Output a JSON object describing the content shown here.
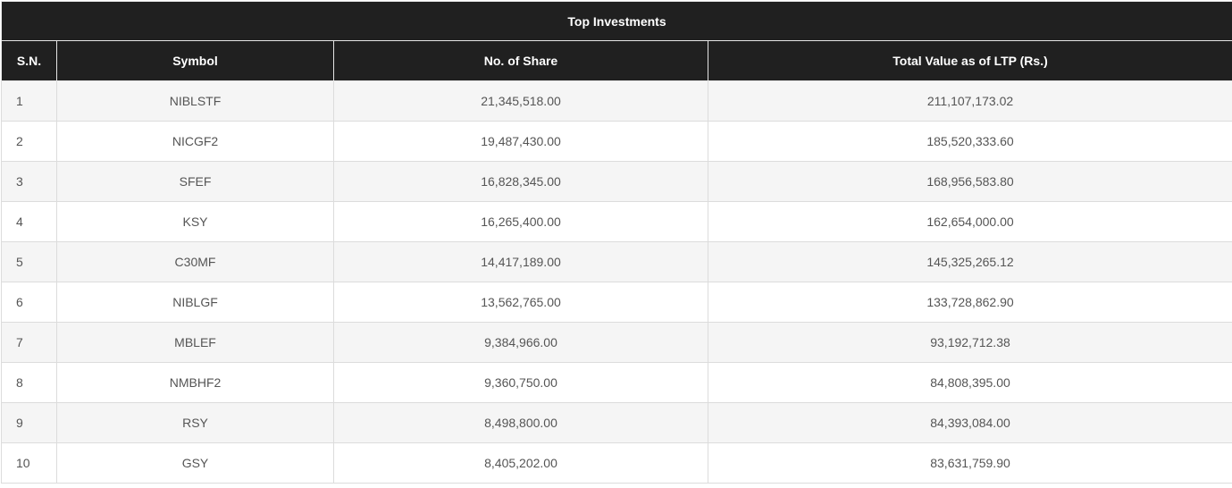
{
  "table": {
    "title": "Top Investments",
    "headers": {
      "sn": "S.N.",
      "symbol": "Symbol",
      "shares": "No. of Share",
      "value": "Total Value as of LTP (Rs.)"
    },
    "rows": [
      {
        "sn": "1",
        "symbol": "NIBLSTF",
        "shares": "21,345,518.00",
        "value": "211,107,173.02"
      },
      {
        "sn": "2",
        "symbol": "NICGF2",
        "shares": "19,487,430.00",
        "value": "185,520,333.60"
      },
      {
        "sn": "3",
        "symbol": "SFEF",
        "shares": "16,828,345.00",
        "value": "168,956,583.80"
      },
      {
        "sn": "4",
        "symbol": "KSY",
        "shares": "16,265,400.00",
        "value": "162,654,000.00"
      },
      {
        "sn": "5",
        "symbol": "C30MF",
        "shares": "14,417,189.00",
        "value": "145,325,265.12"
      },
      {
        "sn": "6",
        "symbol": "NIBLGF",
        "shares": "13,562,765.00",
        "value": "133,728,862.90"
      },
      {
        "sn": "7",
        "symbol": "MBLEF",
        "shares": "9,384,966.00",
        "value": "93,192,712.38"
      },
      {
        "sn": "8",
        "symbol": "NMBHF2",
        "shares": "9,360,750.00",
        "value": "84,808,395.00"
      },
      {
        "sn": "9",
        "symbol": "RSY",
        "shares": "8,498,800.00",
        "value": "84,393,084.00"
      },
      {
        "sn": "10",
        "symbol": "GSY",
        "shares": "8,405,202.00",
        "value": "83,631,759.90"
      }
    ]
  },
  "colors": {
    "header_bg": "#202020",
    "header_text": "#ffffff",
    "row_odd_bg": "#f5f5f5",
    "row_even_bg": "#ffffff",
    "cell_text": "#555555"
  }
}
